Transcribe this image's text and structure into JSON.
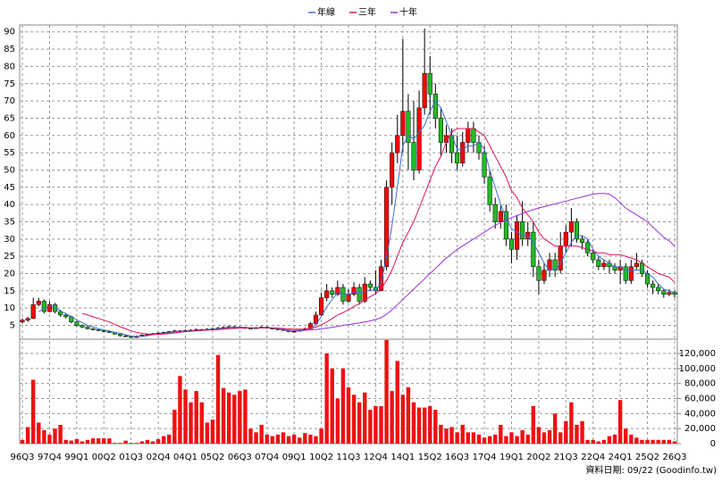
{
  "chart_data": {
    "type": "candlestick",
    "categories": [
      "96Q3",
      null,
      null,
      null,
      null,
      "97Q4",
      null,
      null,
      null,
      null,
      "99Q1",
      null,
      null,
      null,
      null,
      "00Q2",
      null,
      null,
      null,
      null,
      "01Q3",
      null,
      null,
      null,
      null,
      "02Q4",
      null,
      null,
      null,
      null,
      "04Q1",
      null,
      null,
      null,
      null,
      "05Q2",
      null,
      null,
      null,
      null,
      "06Q3",
      null,
      null,
      null,
      null,
      "07Q4",
      null,
      null,
      null,
      null,
      "09Q1",
      null,
      null,
      null,
      null,
      "10Q2",
      null,
      null,
      null,
      null,
      "11Q3",
      null,
      null,
      null,
      null,
      "12Q4",
      null,
      null,
      null,
      null,
      "14Q1",
      null,
      null,
      null,
      null,
      "15Q2",
      null,
      null,
      null,
      null,
      "16Q3",
      null,
      null,
      null,
      null,
      "17Q4",
      null,
      null,
      null,
      null,
      "19Q1",
      null,
      null,
      null,
      null,
      "20Q2",
      null,
      null,
      null,
      null,
      "21Q3",
      null,
      null,
      null,
      null,
      "22Q4",
      null,
      null,
      null,
      null,
      "24Q1",
      null,
      null,
      null,
      null,
      "25Q2",
      null,
      null,
      null,
      null,
      "26Q3"
    ],
    "open": [
      6,
      6.5,
      7,
      11,
      12,
      9,
      11,
      9,
      8,
      7.5,
      6,
      5,
      4.5,
      4,
      3.8,
      3.5,
      3.2,
      3,
      2.5,
      2,
      1.8,
      1.5,
      1.8,
      2.2,
      2.4,
      2.6,
      2.8,
      3,
      3.2,
      3.4,
      3.3,
      3.5,
      3.6,
      3.8,
      3.7,
      3.9,
      4,
      4.2,
      4.4,
      4.6,
      4.5,
      4.4,
      4.2,
      4.1,
      4.3,
      4.5,
      4.2,
      4,
      3.8,
      3.6,
      3.2,
      3.3,
      3.6,
      4,
      5.5,
      8,
      13,
      15,
      14,
      16,
      12,
      14,
      16,
      12,
      17,
      16,
      15,
      22,
      45,
      55,
      60,
      67,
      58,
      50,
      68,
      78,
      72,
      65,
      58,
      60,
      55,
      52,
      58,
      62,
      58,
      55,
      48,
      40,
      35,
      38,
      30,
      27,
      35,
      30,
      32,
      22,
      18,
      21,
      24,
      21,
      28,
      32,
      35,
      30,
      29,
      26,
      24,
      22,
      23,
      22,
      21,
      22,
      18,
      22,
      23,
      20,
      17,
      16,
      15,
      14,
      14.5
    ],
    "high": [
      7,
      7.5,
      13,
      13,
      12.5,
      12,
      11.5,
      9.5,
      8.5,
      7.8,
      6.3,
      5.3,
      4.8,
      4.3,
      4,
      3.7,
      3.4,
      3.1,
      2.6,
      2.2,
      2,
      2.1,
      2.4,
      2.6,
      2.8,
      3,
      3.2,
      3.4,
      3.7,
      3.6,
      3.8,
      3.9,
      4.1,
      4,
      4.2,
      4.3,
      4.6,
      4.8,
      5,
      4.9,
      4.8,
      4.6,
      4.4,
      4.6,
      4.8,
      4.7,
      4.4,
      4.2,
      4,
      3.8,
      3.6,
      3.9,
      4.4,
      6,
      9,
      14.5,
      17,
      16,
      18,
      17,
      15.5,
      17.5,
      17,
      19,
      18,
      21,
      24,
      47,
      58,
      66,
      88,
      72,
      70,
      73,
      91,
      83,
      75,
      68,
      63,
      62,
      60,
      61,
      64,
      64,
      60,
      57,
      50,
      42,
      40,
      40,
      32,
      37,
      41,
      35,
      35,
      24,
      23,
      26,
      26,
      32,
      34,
      39,
      36,
      31,
      30,
      27,
      25,
      24,
      24,
      23,
      24,
      23,
      24,
      26,
      24,
      21,
      18,
      17,
      15.5,
      15.5,
      15
    ],
    "low": [
      5.5,
      6,
      6.8,
      10.5,
      8.5,
      8.8,
      8.5,
      7.5,
      7,
      5.6,
      4.6,
      4.2,
      3.8,
      3.5,
      3.3,
      3,
      2.8,
      2.3,
      1.8,
      1.6,
      1.3,
      1.4,
      1.7,
      2.1,
      2.3,
      2.5,
      2.7,
      3,
      3.1,
      3.1,
      3.2,
      3.4,
      3.5,
      3.5,
      3.6,
      3.8,
      3.9,
      4.1,
      4.3,
      4.3,
      4.2,
      4,
      3.9,
      4,
      4.2,
      4,
      3.8,
      3.6,
      3.4,
      3,
      3,
      3.2,
      3.5,
      3.8,
      5.2,
      7.5,
      12,
      13,
      13.5,
      11,
      11.5,
      13.5,
      11,
      11.5,
      15,
      14,
      15,
      21,
      40,
      52,
      55,
      50,
      47,
      49,
      66,
      66,
      62,
      54,
      55,
      52,
      50,
      51,
      55,
      55,
      53,
      46,
      38,
      33,
      33,
      28,
      23,
      24,
      28,
      28,
      19,
      14,
      17,
      19,
      19,
      20,
      26,
      28,
      29,
      27,
      25,
      23,
      21,
      21,
      20,
      20,
      17,
      17,
      17,
      21,
      19,
      16,
      14,
      14,
      13,
      13.5,
      13
    ],
    "close": [
      6.5,
      7,
      11,
      12,
      9,
      11,
      9,
      8,
      7.5,
      6,
      5,
      4.5,
      4,
      3.8,
      3.5,
      3.2,
      3,
      2.5,
      2,
      1.8,
      1.5,
      1.8,
      2.2,
      2.4,
      2.6,
      2.8,
      3,
      3.2,
      3.4,
      3.3,
      3.5,
      3.6,
      3.8,
      3.7,
      3.9,
      4,
      4.2,
      4.4,
      4.6,
      4.5,
      4.4,
      4.2,
      4.1,
      4.3,
      4.5,
      4.2,
      4,
      3.8,
      3.6,
      3.2,
      3.3,
      3.6,
      4,
      5.5,
      8,
      13,
      15,
      14,
      16,
      12,
      14,
      16,
      12,
      17,
      16,
      15,
      22,
      45,
      55,
      60,
      67,
      58,
      50,
      68,
      78,
      72,
      65,
      58,
      60,
      55,
      52,
      58,
      62,
      58,
      55,
      48,
      40,
      35,
      38,
      30,
      27,
      35,
      30,
      32,
      22,
      18,
      21,
      24,
      21,
      28,
      32,
      35,
      30,
      29,
      26,
      24,
      22,
      23,
      22,
      21,
      22,
      18,
      22,
      23,
      20,
      17,
      16,
      15,
      14,
      14.5,
      14
    ],
    "up_color": "#ff0000",
    "down_color": "#22bb22",
    "series": [
      {
        "name": "年線",
        "color": "#3a6fd8",
        "values": [
          null,
          null,
          null,
          9,
          9.8,
          10.8,
          10.2,
          9.2,
          8.4,
          7.6,
          6.6,
          5.8,
          5,
          4.6,
          4,
          3.7,
          3.4,
          3,
          2.7,
          2.3,
          1.9,
          1.8,
          1.8,
          2,
          2.3,
          2.5,
          2.7,
          2.9,
          3.1,
          3.2,
          3.3,
          3.4,
          3.6,
          3.6,
          3.7,
          3.8,
          4,
          4.1,
          4.3,
          4.4,
          4.5,
          4.4,
          4.3,
          4.2,
          4.3,
          4.3,
          4.2,
          4.1,
          3.9,
          3.6,
          3.5,
          3.4,
          3.5,
          4.1,
          5.2,
          7.6,
          10.4,
          12.5,
          14.5,
          14.2,
          14,
          14.5,
          14.5,
          14.8,
          15.3,
          15,
          17.5,
          24.5,
          34,
          45,
          57,
          60,
          59,
          61,
          63,
          67,
          70,
          68,
          64,
          60,
          56,
          56,
          57,
          57,
          58,
          56,
          50,
          45,
          40,
          36,
          33,
          32,
          31,
          31,
          29,
          26,
          23,
          21,
          21,
          23,
          26,
          29,
          31,
          31,
          30,
          27,
          25,
          24,
          23,
          22,
          22,
          21,
          21,
          21,
          21,
          20,
          19,
          17,
          15.5,
          15,
          14.5
        ]
      },
      {
        "name": "三年",
        "color": "#e0105a",
        "values": [
          null,
          null,
          null,
          null,
          null,
          null,
          null,
          null,
          null,
          null,
          null,
          8.5,
          8,
          7.5,
          7,
          6.5,
          6,
          5.3,
          4.6,
          4,
          3.4,
          3,
          2.7,
          2.5,
          2.4,
          2.4,
          2.5,
          2.6,
          2.8,
          3,
          3.2,
          3.3,
          3.4,
          3.5,
          3.6,
          3.7,
          3.8,
          3.9,
          4,
          4.1,
          4.2,
          4.3,
          4.3,
          4.3,
          4.3,
          4.3,
          4.3,
          4.2,
          4.1,
          4,
          3.9,
          3.9,
          3.9,
          4.1,
          4.5,
          5.2,
          6,
          7,
          8,
          8.7,
          9.5,
          10.5,
          11.3,
          12.3,
          13.3,
          14.2,
          15.6,
          18,
          21,
          25,
          29,
          32,
          35,
          39,
          43,
          47,
          51,
          54,
          58,
          61,
          62,
          62,
          62,
          62,
          61,
          60,
          57,
          54,
          51,
          48,
          44,
          42,
          39,
          37,
          35,
          32,
          30,
          29,
          28,
          28,
          28,
          28,
          28,
          27.5,
          27,
          26.5,
          26,
          26,
          25.5,
          25.5,
          25.5,
          25,
          24.5,
          24,
          23,
          22,
          21,
          20,
          19.5,
          19,
          17.5
        ]
      },
      {
        "name": "十年",
        "color": "#9a30d8",
        "values": [
          null,
          null,
          null,
          null,
          null,
          null,
          null,
          null,
          null,
          null,
          null,
          null,
          null,
          null,
          null,
          null,
          null,
          null,
          null,
          null,
          null,
          null,
          null,
          null,
          null,
          null,
          null,
          null,
          null,
          null,
          null,
          null,
          null,
          null,
          null,
          null,
          null,
          null,
          null,
          null,
          null,
          null,
          null,
          null,
          null,
          null,
          null,
          null,
          3.5,
          3.5,
          3.5,
          3.6,
          3.6,
          3.7,
          3.8,
          4,
          4.2,
          4.4,
          4.7,
          5,
          5.2,
          5.5,
          5.7,
          6,
          6.3,
          6.7,
          7.2,
          8.2,
          9.5,
          11,
          12.5,
          14,
          15.5,
          17,
          18.5,
          20,
          21.5,
          23,
          24.5,
          25.8,
          27,
          28,
          29,
          30,
          31,
          32,
          33,
          34,
          34.8,
          35.5,
          36.2,
          36.8,
          37.4,
          38,
          38.5,
          39,
          39.4,
          39.8,
          40.2,
          40.6,
          41,
          41.4,
          41.8,
          42.2,
          42.6,
          43,
          43.2,
          43.2,
          43,
          42,
          40.5,
          39,
          38,
          37,
          36,
          35,
          33.5,
          32,
          30.5,
          29.5,
          28
        ]
      }
    ],
    "ylim": [
      1,
      92
    ],
    "yticks": [
      5,
      10,
      15,
      20,
      25,
      30,
      35,
      40,
      45,
      50,
      55,
      60,
      65,
      70,
      75,
      80,
      85,
      90
    ],
    "grid": true,
    "volume": {
      "color": "#ee1111",
      "ylim": [
        0,
        139000
      ],
      "yticks": [
        0,
        {
          "value": 20000,
          "label": "20,000"
        },
        {
          "value": 40000,
          "label": "40,000"
        },
        {
          "value": 60000,
          "label": "60,000"
        },
        {
          "value": 80000,
          "label": "80,000"
        },
        {
          "value": 100000,
          "label": "100,000"
        },
        {
          "value": 120000,
          "label": "120,000"
        }
      ],
      "values": [
        5000,
        22000,
        85000,
        28000,
        18000,
        12000,
        20000,
        25000,
        5000,
        4000,
        6000,
        3000,
        5000,
        7000,
        7000,
        7000,
        7000,
        1000,
        1000,
        4000,
        1000,
        1000,
        3000,
        5000,
        3000,
        6000,
        10000,
        12000,
        45000,
        90000,
        72000,
        55000,
        70000,
        55000,
        28000,
        32000,
        118000,
        74000,
        68000,
        65000,
        70000,
        72000,
        20000,
        15000,
        25000,
        12000,
        10000,
        12000,
        15000,
        10000,
        12000,
        8000,
        14000,
        12000,
        10000,
        20000,
        120000,
        100000,
        60000,
        100000,
        75000,
        65000,
        55000,
        68000,
        45000,
        50000,
        50000,
        138000,
        70000,
        110000,
        65000,
        75000,
        55000,
        48000,
        48000,
        50000,
        45000,
        25000,
        20000,
        22000,
        15000,
        25000,
        15000,
        15000,
        12000,
        8000,
        10000,
        12000,
        25000,
        10000,
        15000,
        10000,
        18000,
        12000,
        50000,
        22000,
        15000,
        18000,
        40000,
        15000,
        30000,
        55000,
        25000,
        30000,
        5000,
        5000,
        3000,
        5000,
        10000,
        12000,
        58000,
        20000,
        12000,
        8000,
        5000,
        5000,
        5000,
        5000,
        5000,
        5000,
        3000
      ]
    },
    "source": "資料日期: 09/22 (Goodinfo.tw)"
  }
}
